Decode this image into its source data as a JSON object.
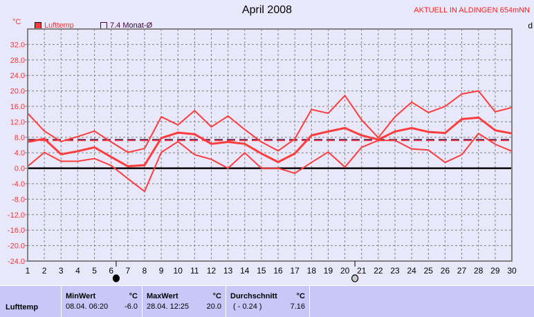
{
  "header": {
    "title": "April 2008",
    "station": "AKTUELL IN ALDINGEN 654mNN",
    "unit": "°C",
    "right_cut": "d"
  },
  "legend": [
    {
      "label": "Lufttemp",
      "color": "#ff3c3c"
    },
    {
      "label": "7.4 Monat-Ø",
      "color": "#400040"
    }
  ],
  "chart_data": {
    "type": "line",
    "title": "April 2008",
    "ylabel": "°C",
    "ylim": [
      -24,
      36
    ],
    "y_ticks": [
      "32.0",
      "28.0",
      "24.0",
      "20.0",
      "16.0",
      "12.0",
      "8.0",
      "4.0",
      "0.0",
      "-4.0",
      "-8.0",
      "-12.0",
      "-16.0",
      "-20.0",
      "-24.0"
    ],
    "x": [
      1,
      2,
      3,
      4,
      5,
      6,
      7,
      8,
      9,
      10,
      11,
      12,
      13,
      14,
      15,
      16,
      17,
      18,
      19,
      20,
      21,
      22,
      23,
      24,
      25,
      26,
      27,
      28,
      29,
      30
    ],
    "grid": true,
    "series": [
      {
        "role": "max",
        "values": [
          14.2,
          9.6,
          6.9,
          8.2,
          9.6,
          6.8,
          4.1,
          5.1,
          13.3,
          11.2,
          14.9,
          10.7,
          13.5,
          10.0,
          6.8,
          4.5,
          7.6,
          15.2,
          14.2,
          18.8,
          12.5,
          7.9,
          13.3,
          17.1,
          14.4,
          16.0,
          19.2,
          20.0,
          14.6,
          15.7
        ]
      },
      {
        "role": "mean",
        "values": [
          6.8,
          7.6,
          3.6,
          4.4,
          5.4,
          2.9,
          0.5,
          0.8,
          7.8,
          9.2,
          8.8,
          6.3,
          6.8,
          6.3,
          3.8,
          1.6,
          3.8,
          8.5,
          9.5,
          10.4,
          8.5,
          7.4,
          9.5,
          10.4,
          9.4,
          9.1,
          12.7,
          13.1,
          9.8,
          9.0
        ]
      },
      {
        "role": "min",
        "values": [
          0.5,
          4.1,
          1.8,
          1.8,
          2.5,
          0.7,
          -2.7,
          -6.0,
          4.1,
          6.9,
          3.5,
          2.3,
          0.0,
          4.0,
          0.0,
          0.0,
          -1.3,
          1.5,
          4.2,
          0.3,
          5.4,
          7.2,
          7.2,
          5.0,
          4.7,
          1.5,
          3.5,
          9.0,
          6.2,
          4.4
        ]
      }
    ],
    "reference_lines": [
      {
        "label": "7.4 Monat-Ø",
        "value": 7.4,
        "color": "#400040"
      },
      {
        "value": 7.16,
        "color": "#ff3c3c"
      }
    ],
    "moon_phases": [
      {
        "day": 6.3,
        "phase": "new-moon"
      },
      {
        "day": 20.6,
        "phase": "full-moon"
      }
    ]
  },
  "stats": {
    "row_label": "Lufttemp",
    "min": {
      "header": "MinWert",
      "unit": "°C",
      "time": "08.04.  06:20",
      "value": "-6.0"
    },
    "max": {
      "header": "MaxWert",
      "unit": "°C",
      "time": "28.04.  12:25",
      "value": "20.0"
    },
    "avg": {
      "header": "Durchschnitt",
      "unit": "°C",
      "extra": "( - 0.24 )",
      "value": "7.16"
    }
  }
}
